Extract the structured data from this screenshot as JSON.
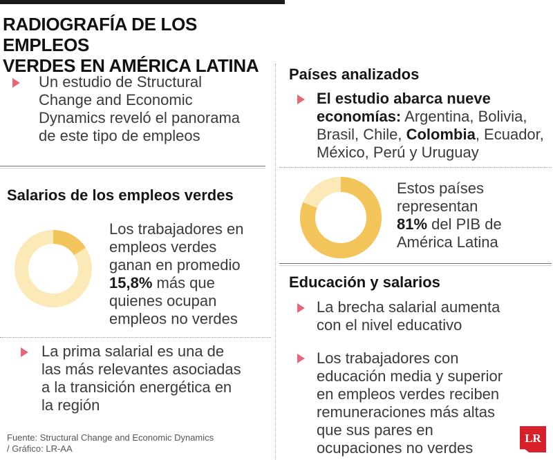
{
  "header": {
    "title_line1": "RADIOGRAFÍA DE LOS EMPLEOS",
    "title_line2": "VERDES EN AMÉRICA LATINA"
  },
  "left": {
    "intro": [
      "Un estudio de Structural",
      "Change and Economic",
      "Dynamics reveló el panorama",
      "de este tipo de empleos"
    ],
    "salarios": {
      "heading": "Salarios de los empleos verdes",
      "lines": [
        "Los trabajadores en",
        "empleos verdes",
        "ganan en promedio"
      ],
      "highlight": "15,8%",
      "highlight_rest": " más que",
      "lines_after": [
        "quienes ocupan",
        "empleos no verdes"
      ],
      "donut": {
        "value_percent": 15.8,
        "fill_color": "#f2c45a",
        "track_color": "#fbeab8"
      }
    },
    "prima": [
      "La prima salarial es una de",
      "las más relevantes asociadas",
      "a la transición energética en",
      "la región"
    ]
  },
  "right": {
    "paises": {
      "heading": "Países analizados",
      "bold_line1": "El estudio abarca nueve",
      "bold_line2": "economías:",
      "line2_rest": " Argentina, Bolivia,",
      "line3_a": "Brasil, Chile, ",
      "line3_bold": "Colombia",
      "line3_b": ", Ecuador,",
      "line4": "México, Perú y Uruguay"
    },
    "pib": {
      "lines": [
        "Estos países",
        "representan"
      ],
      "highlight": "81%",
      "highlight_rest": " del PIB de",
      "last_line": "América Latina",
      "donut": {
        "value_percent": 81,
        "fill_color": "#f2c45a",
        "track_color": "#fbeab8"
      }
    },
    "educacion": {
      "heading": "Educación y salarios",
      "bullet1": [
        "La brecha salarial aumenta",
        "con el nivel educativo"
      ],
      "bullet2": [
        "Los trabajadores con",
        "educación media y superior",
        "en empleos verdes reciben",
        "remuneraciones más altas",
        "que sus pares en",
        "ocupaciones no verdes"
      ]
    }
  },
  "footer": {
    "line1": "Fuente: Structural Change and Economic Dynamics",
    "line2": "/ Gráfico: LR-AA",
    "logo": "LR"
  },
  "colors": {
    "bullet": "#e5677c",
    "logo_bg": "#d8202a"
  }
}
